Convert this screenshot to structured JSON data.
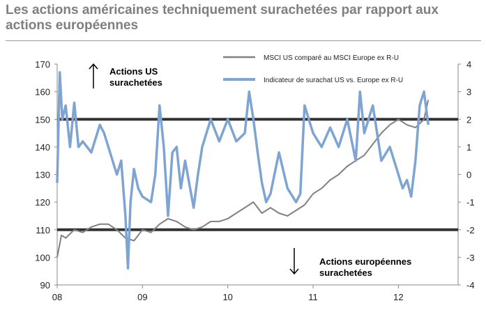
{
  "chart_data": {
    "type": "line",
    "title": "Les actions américaines techniquement surachetées par rapport aux actions européennes",
    "xlabel": "",
    "ylabel": "",
    "x_ticks": [
      "08",
      "09",
      "10",
      "11",
      "12"
    ],
    "xlim": [
      2008.0,
      2012.7
    ],
    "y_left": {
      "ticks": [
        90,
        100,
        110,
        120,
        130,
        140,
        150,
        160,
        170
      ],
      "lim": [
        90,
        170
      ]
    },
    "y_right": {
      "ticks": [
        -4,
        -3,
        -2,
        -1,
        0,
        1,
        2,
        3,
        4
      ],
      "lim": [
        -4,
        4
      ]
    },
    "reference_lines_right_axis": [
      2,
      -2
    ],
    "grid": false,
    "legend_placement": "top-right",
    "series": [
      {
        "name": "MSCI US comparé au MSCI Europe ex R-U",
        "axis": "left",
        "color": "#808080",
        "x": [
          2008.0,
          2008.05,
          2008.1,
          2008.2,
          2008.3,
          2008.4,
          2008.5,
          2008.6,
          2008.7,
          2008.8,
          2008.9,
          2009.0,
          2009.1,
          2009.2,
          2009.3,
          2009.4,
          2009.5,
          2009.6,
          2009.7,
          2009.8,
          2009.9,
          2010.0,
          2010.1,
          2010.2,
          2010.3,
          2010.4,
          2010.5,
          2010.6,
          2010.7,
          2010.8,
          2010.9,
          2011.0,
          2011.1,
          2011.2,
          2011.3,
          2011.4,
          2011.5,
          2011.6,
          2011.7,
          2011.8,
          2011.9,
          2012.0,
          2012.1,
          2012.2,
          2012.3,
          2012.35
        ],
        "values": [
          100,
          108,
          107,
          110,
          109,
          111,
          112,
          112,
          110,
          107,
          106,
          110,
          109,
          112,
          114,
          113,
          111,
          110,
          111,
          113,
          113,
          114,
          116,
          118,
          120,
          116,
          118,
          116,
          115,
          117,
          119,
          123,
          125,
          128,
          130,
          133,
          135,
          137,
          141,
          145,
          148,
          150,
          148,
          147,
          150,
          157
        ]
      },
      {
        "name": "Indicateur de surachat US vs. Europe ex R-U",
        "axis": "right",
        "color": "#7ea4d4",
        "x": [
          2008.0,
          2008.03,
          2008.06,
          2008.1,
          2008.15,
          2008.2,
          2008.25,
          2008.3,
          2008.4,
          2008.5,
          2008.55,
          2008.6,
          2008.7,
          2008.75,
          2008.8,
          2008.83,
          2008.86,
          2008.9,
          2008.95,
          2009.0,
          2009.1,
          2009.15,
          2009.2,
          2009.25,
          2009.3,
          2009.35,
          2009.4,
          2009.45,
          2009.5,
          2009.6,
          2009.65,
          2009.7,
          2009.8,
          2009.9,
          2010.0,
          2010.1,
          2010.2,
          2010.25,
          2010.3,
          2010.35,
          2010.4,
          2010.45,
          2010.5,
          2010.6,
          2010.7,
          2010.8,
          2010.85,
          2010.9,
          2011.0,
          2011.1,
          2011.2,
          2011.3,
          2011.4,
          2011.5,
          2011.55,
          2011.6,
          2011.7,
          2011.8,
          2011.9,
          2012.0,
          2012.05,
          2012.1,
          2012.15,
          2012.2,
          2012.25,
          2012.3,
          2012.35
        ],
        "values": [
          -0.3,
          3.7,
          2.0,
          2.5,
          1.0,
          2.6,
          1.0,
          1.2,
          0.8,
          1.8,
          1.5,
          1.0,
          0.0,
          0.5,
          -1.5,
          -3.4,
          -1.0,
          0.2,
          -0.5,
          -0.8,
          -1.0,
          0.0,
          2.5,
          1.0,
          -1.5,
          0.8,
          1.0,
          -0.5,
          0.5,
          -1.2,
          0.0,
          1.0,
          2.0,
          1.2,
          2.0,
          1.2,
          1.5,
          3.0,
          2.0,
          0.8,
          -0.3,
          -1.0,
          -0.7,
          0.8,
          -0.5,
          -1.0,
          -0.7,
          2.5,
          1.5,
          1.0,
          1.7,
          1.0,
          2.0,
          0.5,
          3.0,
          1.5,
          2.5,
          0.5,
          1.0,
          0.0,
          -0.5,
          -0.2,
          -0.8,
          0.5,
          2.5,
          3.0,
          1.8
        ]
      }
    ],
    "annotations": [
      {
        "lines": [
          "Actions US",
          "surachetées"
        ],
        "arrow": "up"
      },
      {
        "lines": [
          "Actions européennes",
          "surachetées"
        ],
        "arrow": "down"
      }
    ]
  }
}
